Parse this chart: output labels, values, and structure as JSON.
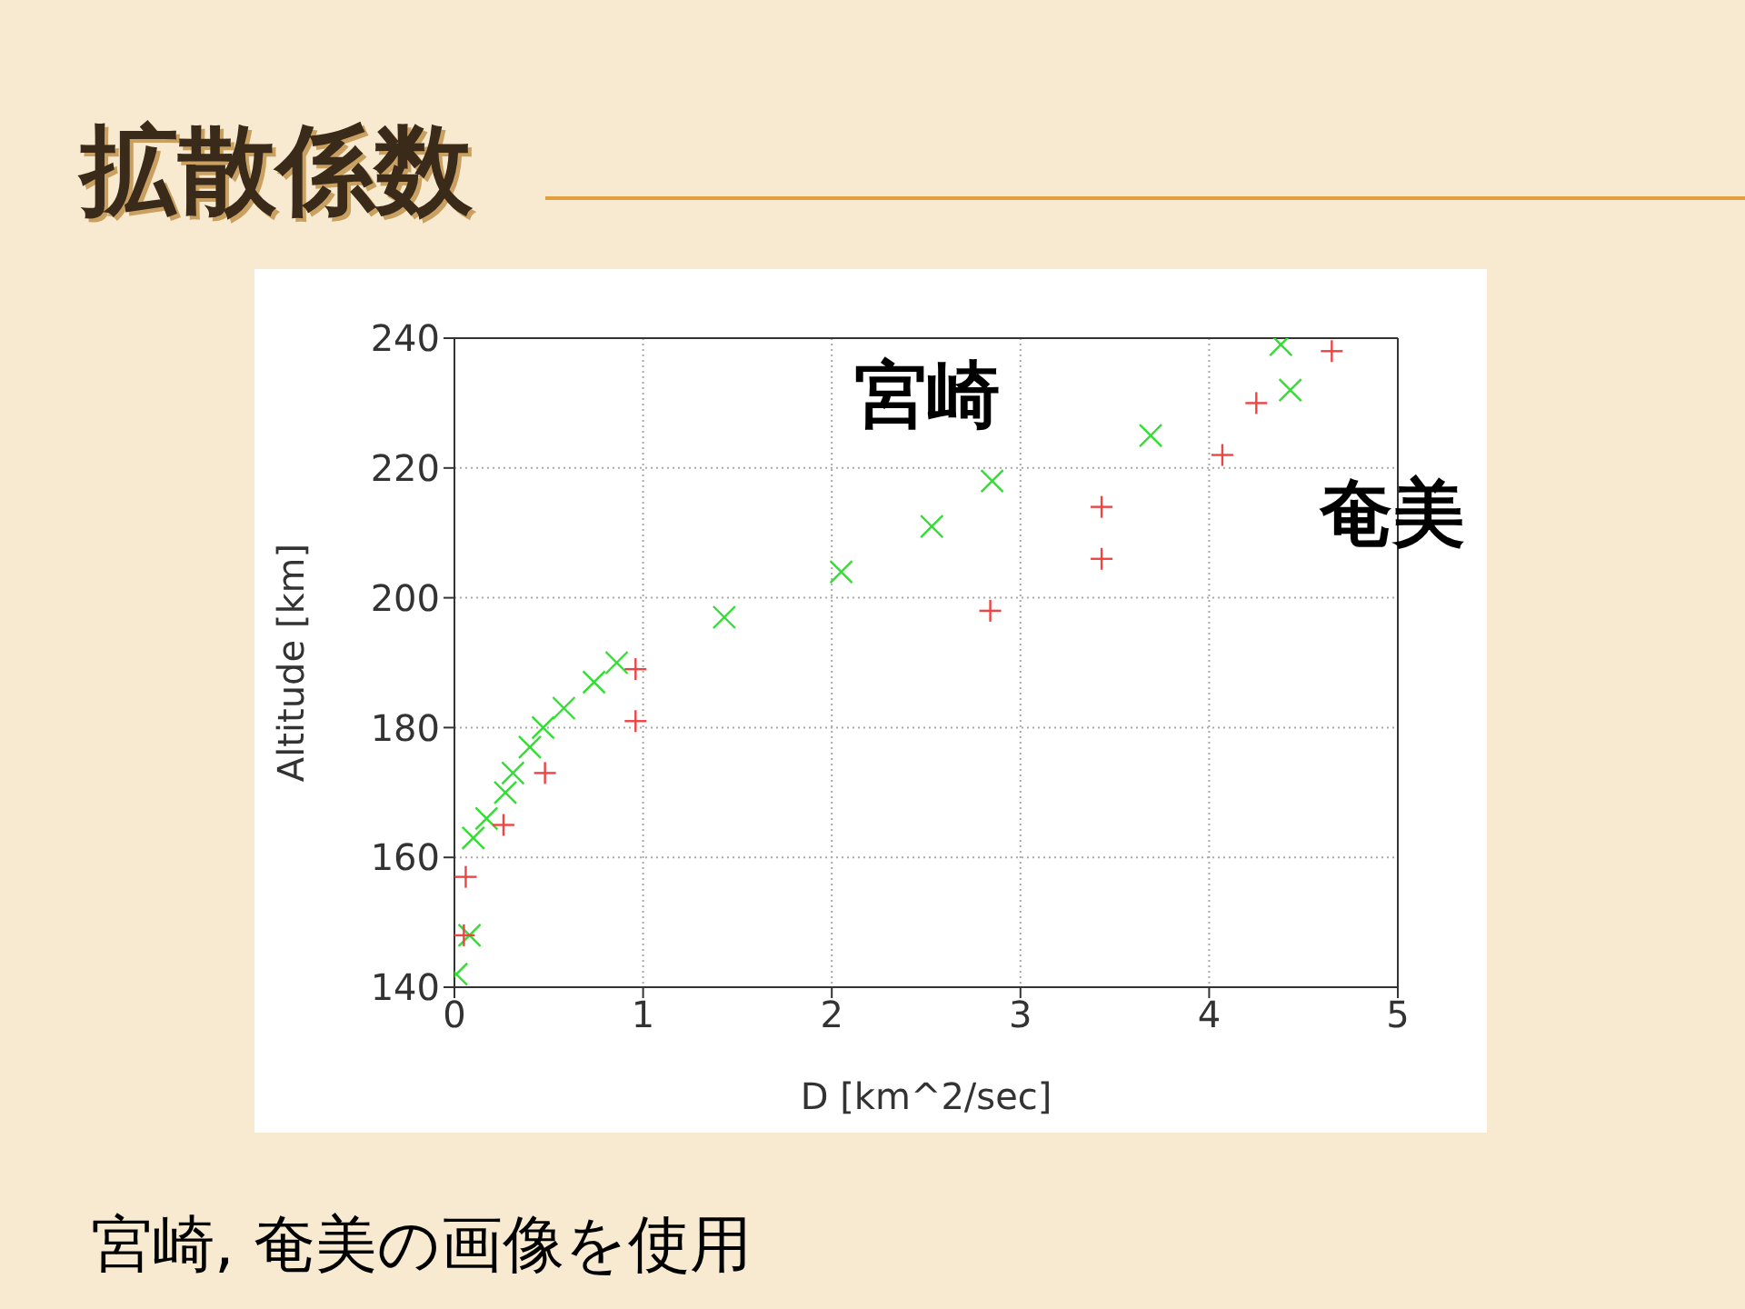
{
  "chart_data": {
    "type": "scatter",
    "title": "拡散係数",
    "xlabel": "D [km^2/sec]",
    "ylabel": "Altitude [km]",
    "annotations": [
      "宮崎, 奄美の画像を使用"
    ],
    "series": [
      {
        "name": "宮崎",
        "color": "#33dd33",
        "marker": "cross",
        "x": [
          0.01,
          0.08,
          0.1,
          0.17,
          0.27,
          0.31,
          0.4,
          0.47,
          0.58,
          0.74,
          0.86,
          1.43,
          2.05,
          2.53,
          2.85,
          3.69,
          4.38,
          4.43
        ],
        "values": [
          142,
          148,
          163,
          166,
          170,
          173,
          177,
          180,
          183,
          187,
          190,
          197,
          204,
          211,
          218,
          225,
          239,
          232
        ]
      },
      {
        "name": "奄美",
        "color": "#ee4444",
        "marker": "plus",
        "x": [
          0.05,
          0.06,
          0.26,
          0.48,
          0.96,
          0.96,
          2.84,
          3.43,
          3.43,
          4.07,
          4.25,
          4.65
        ],
        "values": [
          148,
          157,
          165,
          173,
          181,
          189,
          198,
          206,
          214,
          222,
          230,
          238
        ]
      }
    ],
    "xlim": [
      0,
      5
    ],
    "xticks": [
      0,
      1,
      2,
      3,
      4,
      5
    ],
    "ylim": [
      140,
      240
    ],
    "yticks": [
      140,
      160,
      180,
      200,
      220,
      240
    ],
    "grid": true
  }
}
